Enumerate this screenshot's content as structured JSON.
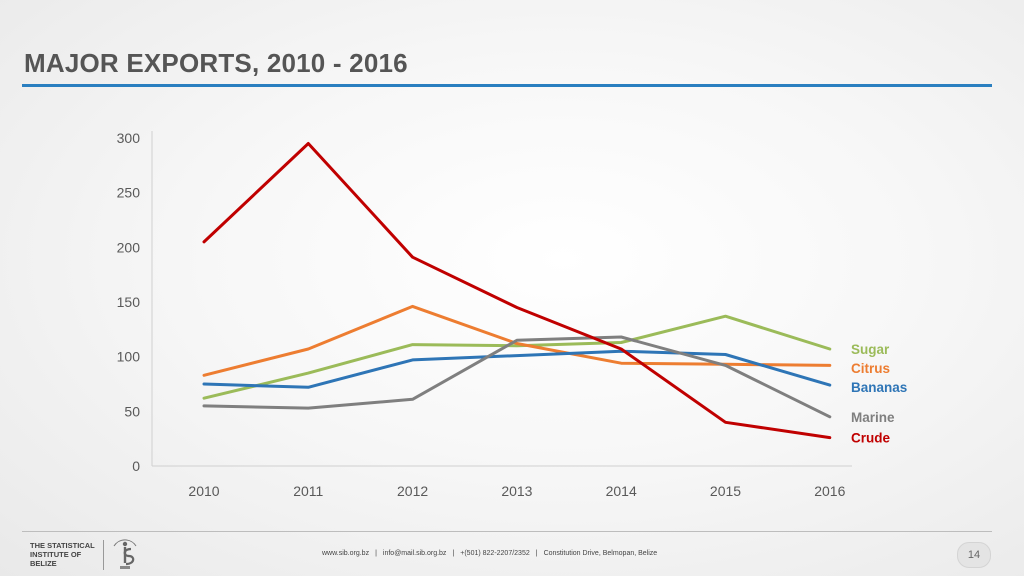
{
  "slide": {
    "title": "MAJOR EXPORTS, 2010 - 2016",
    "accent_color": "#2a7fc0",
    "page_number": "14"
  },
  "footer": {
    "org_name": "THE STATISTICAL INSTITUTE OF BELIZE",
    "logo_icon": "sib-logo-icon",
    "website": "www.sib.org.bz",
    "email": "info@mail.sib.org.bz",
    "phone": "+(501) 822-2207/2352",
    "address": "Constitution Drive, Belmopan, Belize"
  },
  "chart_data": {
    "type": "line",
    "title": "",
    "xlabel": "",
    "ylabel": "",
    "x": [
      2010,
      2011,
      2012,
      2013,
      2014,
      2015,
      2016
    ],
    "ylim": [
      0,
      300
    ],
    "yticks": [
      0,
      50,
      100,
      150,
      200,
      250,
      300
    ],
    "grid": false,
    "legend": "inline labels at line ends (right)",
    "series": [
      {
        "name": "Sugar",
        "color": "#9bbb59",
        "values": [
          62,
          85,
          111,
          110,
          113,
          137,
          107
        ]
      },
      {
        "name": "Citrus",
        "color": "#ed7d31",
        "values": [
          83,
          107,
          146,
          112,
          94,
          93,
          92
        ]
      },
      {
        "name": "Bananas",
        "color": "#2e75b6",
        "values": [
          75,
          72,
          97,
          101,
          105,
          102,
          74
        ]
      },
      {
        "name": "Marine",
        "color": "#7f7f7f",
        "values": [
          55,
          53,
          61,
          115,
          118,
          92,
          45
        ]
      },
      {
        "name": "Crude",
        "color": "#c00000",
        "values": [
          205,
          295,
          191,
          145,
          107,
          40,
          26
        ]
      }
    ]
  }
}
